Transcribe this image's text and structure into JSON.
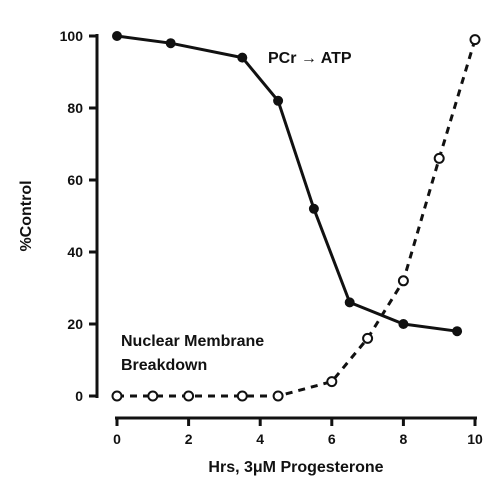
{
  "chart_data": {
    "type": "line",
    "title": "",
    "xlabel": "Hrs, 3μM Progesterone",
    "ylabel": "%Control",
    "xlim": [
      0,
      10
    ],
    "ylim": [
      0,
      100
    ],
    "x_ticks": [
      "0",
      "2",
      "4",
      "6",
      "8",
      "10"
    ],
    "y_ticks": [
      "0",
      "20",
      "40",
      "60",
      "80",
      "100"
    ],
    "grid": false,
    "legend": "none",
    "series": [
      {
        "x": [
          0,
          1.5,
          3.5,
          4.5,
          5.5,
          6.5,
          8,
          9.5
        ],
        "values": [
          100,
          98,
          94,
          82,
          52,
          26,
          20,
          18
        ],
        "style": "solid",
        "marker": "filled-circle",
        "color": "#111111"
      },
      {
        "x": [
          0,
          1,
          2,
          3.5,
          4.5,
          6,
          7,
          8,
          9,
          10
        ],
        "values": [
          0,
          0,
          0,
          0,
          0,
          4,
          16,
          32,
          66,
          99
        ],
        "style": "dashed",
        "marker": "open-circle",
        "color": "#111111"
      }
    ],
    "annotations": [
      {
        "lines": [
          "PCr → ATP"
        ]
      },
      {
        "lines": [
          "Nuclear Membrane",
          "Breakdown"
        ]
      }
    ]
  }
}
